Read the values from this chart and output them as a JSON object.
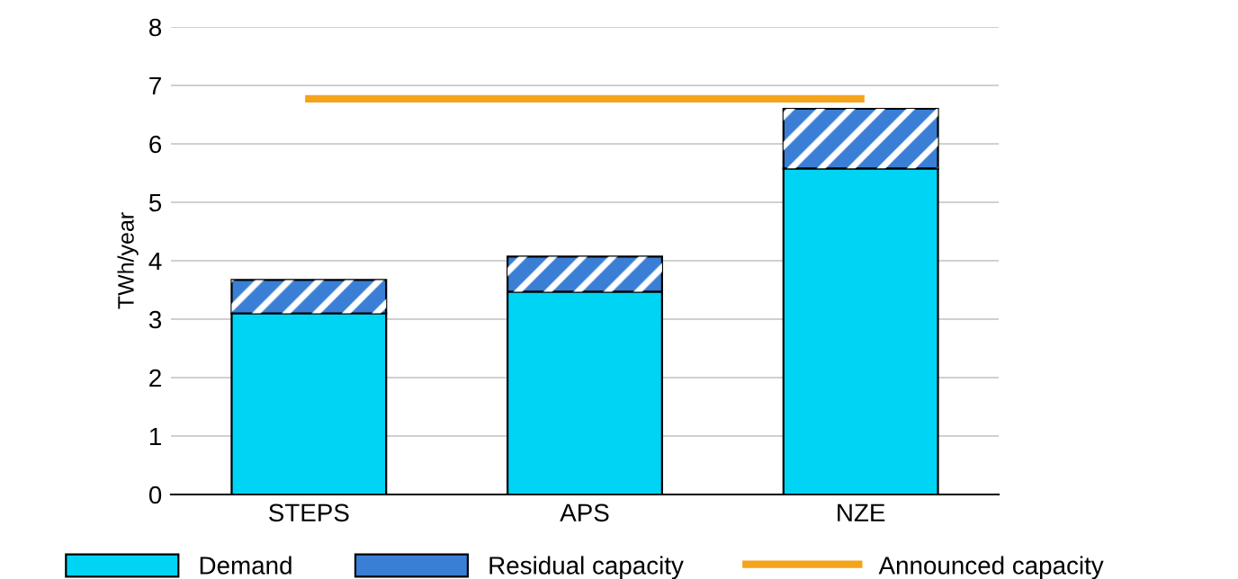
{
  "chart_data": {
    "type": "bar",
    "stacked": true,
    "ylabel": "TWh/year",
    "categories": [
      "STEPS",
      "APS",
      "NZE"
    ],
    "series": [
      {
        "name": "Demand",
        "color": "#00d4f5",
        "values": [
          3.1,
          3.47,
          5.58
        ]
      },
      {
        "name": "Residual capacity",
        "color": "#3a7fd5",
        "values": [
          0.57,
          0.6,
          1.02
        ]
      },
      {
        "name": "Announced capacity",
        "type": "line",
        "color": "#f5a31a",
        "values": [
          6.77,
          6.77,
          6.77
        ]
      }
    ],
    "ylim": [
      0,
      8
    ],
    "yticks": [
      0,
      1,
      2,
      3,
      4,
      5,
      6,
      7,
      8
    ],
    "grid": "y",
    "legend": "bottom"
  }
}
